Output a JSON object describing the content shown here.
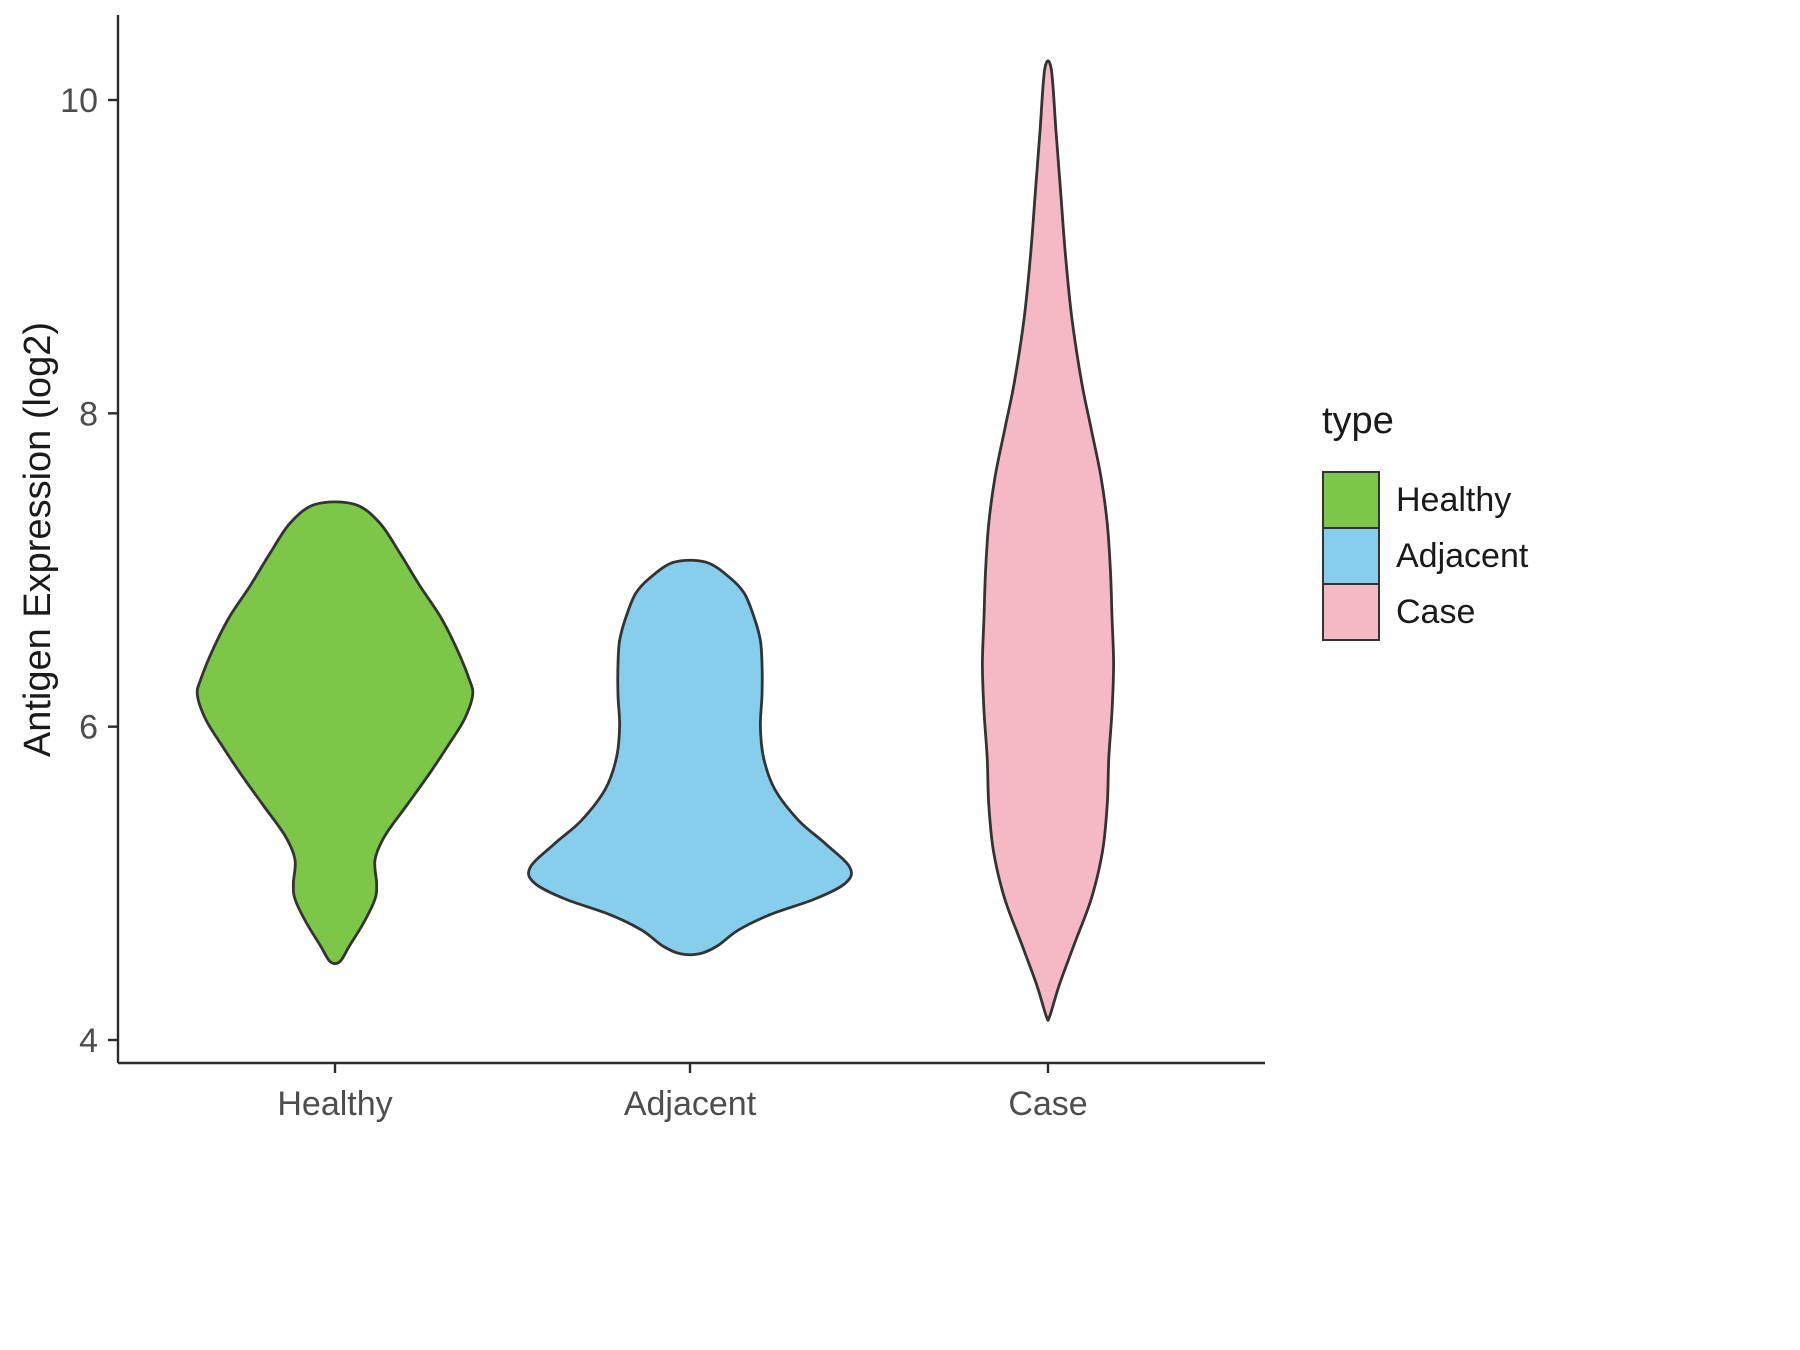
{
  "chart_data": {
    "type": "violin",
    "title": "",
    "xlabel": "",
    "ylabel": "Antigen Expression (log2)",
    "x_categories": [
      "Healthy",
      "Adjacent",
      "Case"
    ],
    "y_ticks": [
      4,
      6,
      8,
      10
    ],
    "ylim": [
      3.85,
      10.55
    ],
    "grid": false,
    "background": "#ffffff",
    "axis_color": "#2b2b2b",
    "tick_label_color": "#4d4d4d",
    "outline_color": "#333333",
    "legend": {
      "title": "type",
      "position": "right",
      "entries": [
        {
          "label": "Healthy",
          "color": "#7CC747"
        },
        {
          "label": "Adjacent",
          "color": "#86CEEB"
        },
        {
          "label": "Case",
          "color": "#F5B9C5"
        }
      ]
    },
    "series": [
      {
        "name": "Healthy",
        "color": "#7CC747",
        "value_range": [
          4.5,
          7.42
        ],
        "profile": [
          [
            7.42,
            0.12
          ],
          [
            7.3,
            0.28
          ],
          [
            7.1,
            0.41
          ],
          [
            6.9,
            0.53
          ],
          [
            6.7,
            0.66
          ],
          [
            6.5,
            0.76
          ],
          [
            6.3,
            0.84
          ],
          [
            6.2,
            0.86
          ],
          [
            6.05,
            0.81
          ],
          [
            5.9,
            0.72
          ],
          [
            5.7,
            0.59
          ],
          [
            5.5,
            0.45
          ],
          [
            5.3,
            0.31
          ],
          [
            5.15,
            0.25
          ],
          [
            5.0,
            0.26
          ],
          [
            4.9,
            0.25
          ],
          [
            4.75,
            0.18
          ],
          [
            4.6,
            0.09
          ],
          [
            4.5,
            0.03
          ]
        ]
      },
      {
        "name": "Adjacent",
        "color": "#86CEEB",
        "value_range": [
          4.55,
          7.05
        ],
        "profile": [
          [
            7.05,
            0.1
          ],
          [
            6.95,
            0.25
          ],
          [
            6.85,
            0.34
          ],
          [
            6.7,
            0.4
          ],
          [
            6.55,
            0.44
          ],
          [
            6.4,
            0.45
          ],
          [
            6.2,
            0.45
          ],
          [
            6.0,
            0.44
          ],
          [
            5.8,
            0.46
          ],
          [
            5.6,
            0.53
          ],
          [
            5.4,
            0.68
          ],
          [
            5.25,
            0.85
          ],
          [
            5.1,
            1.0
          ],
          [
            5.0,
            0.97
          ],
          [
            4.9,
            0.78
          ],
          [
            4.8,
            0.5
          ],
          [
            4.7,
            0.3
          ],
          [
            4.6,
            0.17
          ],
          [
            4.55,
            0.06
          ]
        ]
      },
      {
        "name": "Case",
        "color": "#F5B9C5",
        "value_range": [
          4.15,
          10.2
        ],
        "profile": [
          [
            10.2,
            0.02
          ],
          [
            9.8,
            0.05
          ],
          [
            9.4,
            0.08
          ],
          [
            9.0,
            0.11
          ],
          [
            8.6,
            0.15
          ],
          [
            8.2,
            0.21
          ],
          [
            7.9,
            0.27
          ],
          [
            7.6,
            0.33
          ],
          [
            7.3,
            0.37
          ],
          [
            7.0,
            0.39
          ],
          [
            6.7,
            0.4
          ],
          [
            6.4,
            0.41
          ],
          [
            6.1,
            0.4
          ],
          [
            5.8,
            0.38
          ],
          [
            5.5,
            0.37
          ],
          [
            5.2,
            0.34
          ],
          [
            4.9,
            0.27
          ],
          [
            4.6,
            0.16
          ],
          [
            4.35,
            0.07
          ],
          [
            4.15,
            0.01
          ]
        ]
      }
    ]
  }
}
